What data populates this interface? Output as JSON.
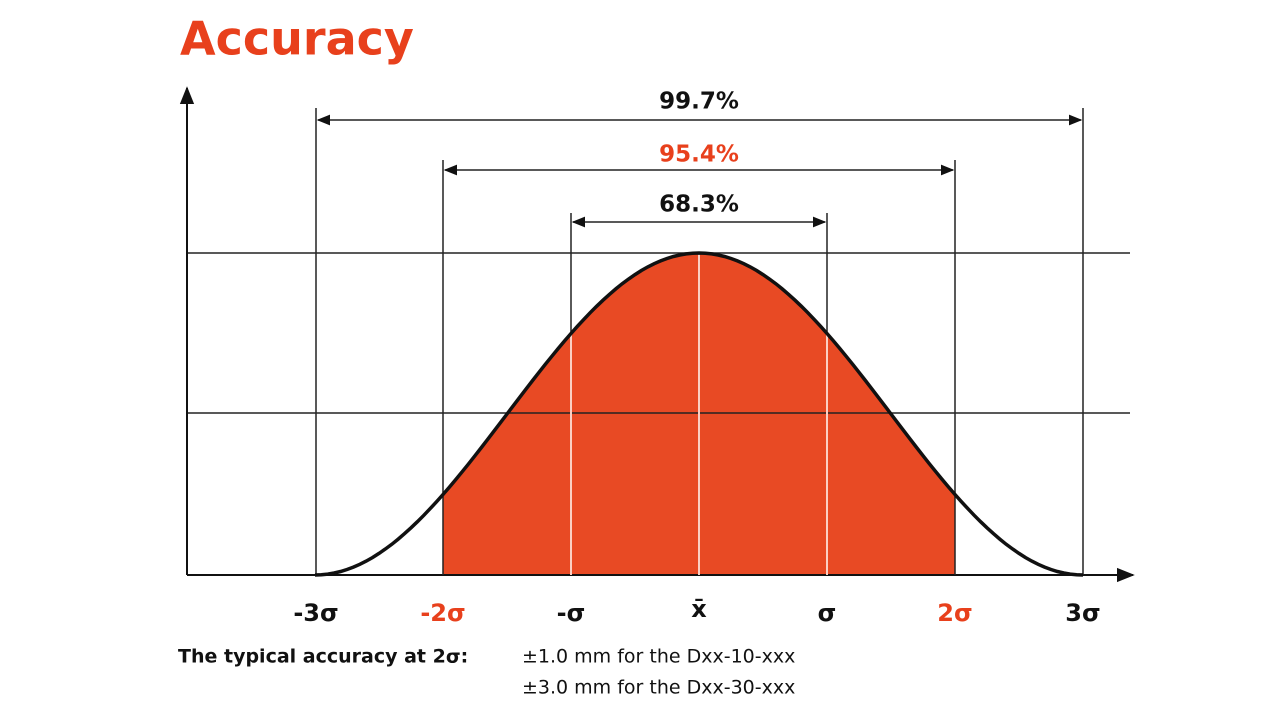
{
  "title": "Accuracy",
  "intervals": [
    {
      "label": "99.7%"
    },
    {
      "label": "95.4%"
    },
    {
      "label": "68.3%"
    }
  ],
  "axis_labels": [
    "-3σ",
    "-2σ",
    "-σ",
    "x̄",
    "σ",
    "2σ",
    "3σ"
  ],
  "note": {
    "label": "The typical accuracy at 2σ:",
    "lines": [
      "±1.0 mm for the Dxx-10-xxx",
      "±3.0 mm for the Dxx-30-xxx"
    ]
  }
}
